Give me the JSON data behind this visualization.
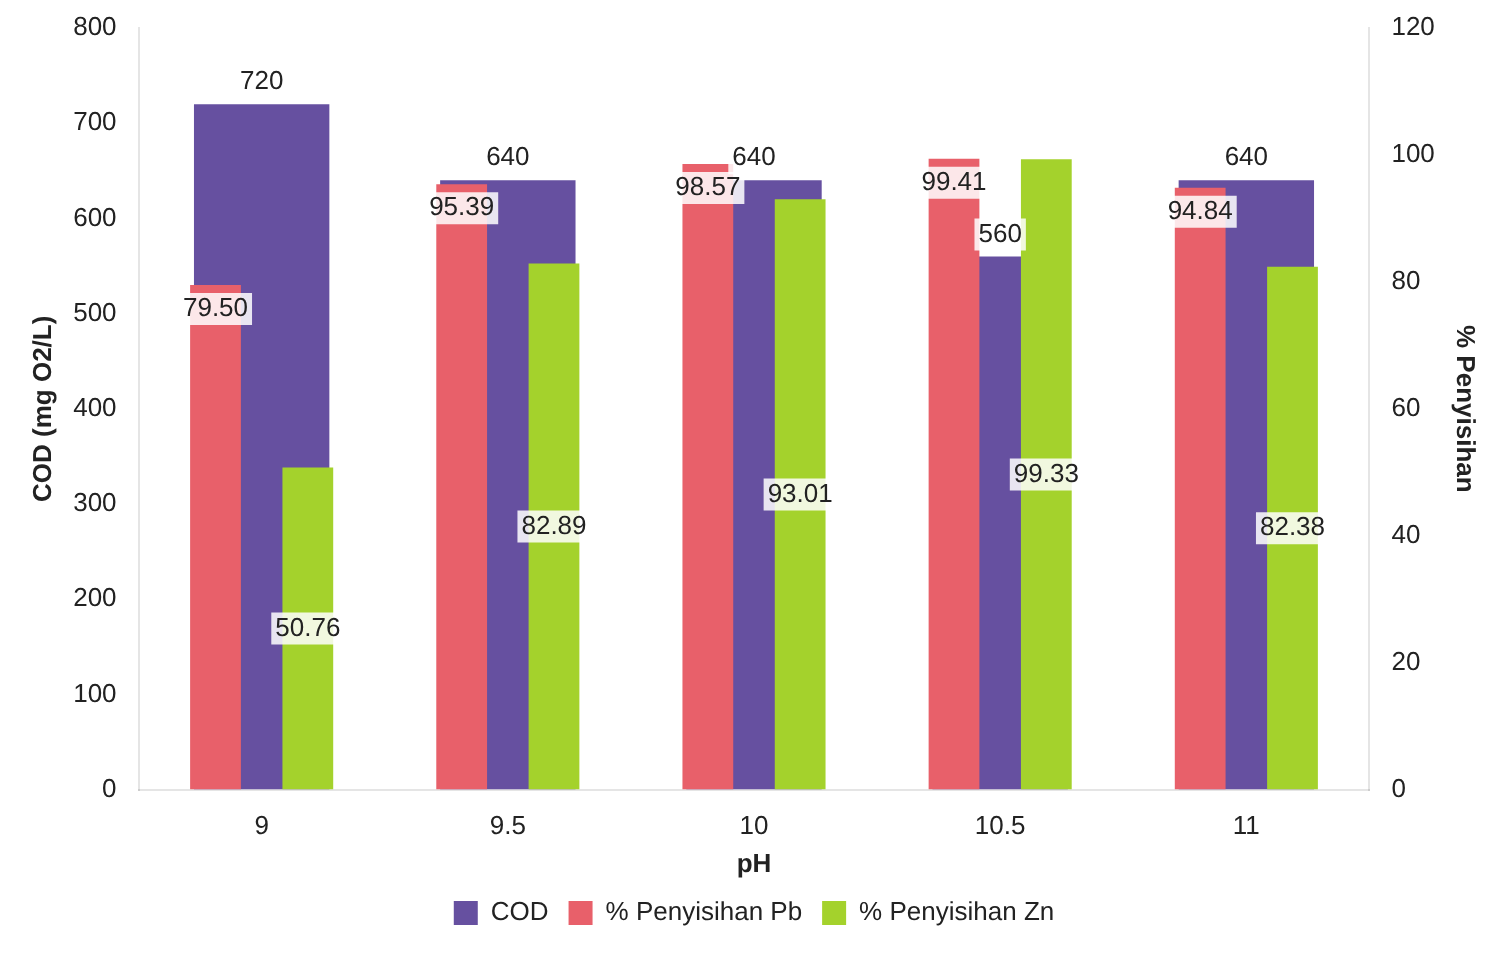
{
  "chart_data": {
    "type": "bar",
    "xlabel": "pH",
    "ylabel": "COD (mg O2/L)",
    "y2label": "% Penyisihan",
    "categories": [
      "9",
      "9.5",
      "10",
      "10.5",
      "11"
    ],
    "series": [
      {
        "name": "COD",
        "color": "#6650a0",
        "values": [
          720,
          640,
          640,
          560,
          640
        ]
      },
      {
        "name": "% Penyisihan Pb",
        "color": "#e8606a",
        "values": [
          79.5,
          95.39,
          98.57,
          99.41,
          94.84
        ],
        "axis": "y2",
        "value_labels": [
          "79.50",
          "95.39",
          "98.57",
          "99.41",
          "94.84"
        ]
      },
      {
        "name": "% Penyisihan Zn",
        "color": "#a4d22c",
        "values": [
          50.76,
          82.89,
          93.01,
          99.33,
          82.38
        ],
        "axis": "y2",
        "value_labels": [
          "50.76",
          "82.89",
          "93.01",
          "99.33",
          "82.38"
        ]
      }
    ],
    "ylim": [
      0,
      800
    ],
    "yticks": [
      0,
      100,
      200,
      300,
      400,
      500,
      600,
      700,
      800
    ],
    "y2lim": [
      0,
      120
    ],
    "y2ticks": [
      0,
      20,
      40,
      60,
      80,
      100,
      120
    ],
    "data_labels": true,
    "legend": "bottom",
    "grid": false
  }
}
